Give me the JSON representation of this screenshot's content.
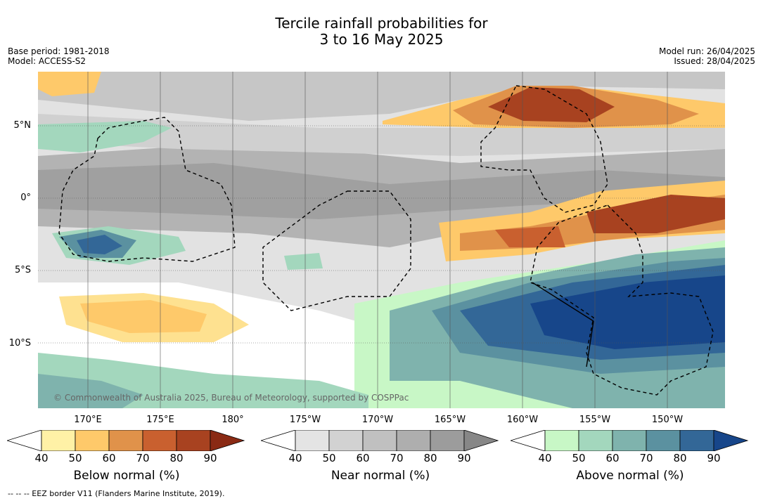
{
  "title_line1": "Tercile rainfall probabilities for",
  "title_line2": "3 to 16 May 2025",
  "base_period": "Base period: 1981-2018",
  "model": "Model: ACCESS-S2",
  "model_run": "Model run: 26/04/2025",
  "issued": "Issued: 28/04/2025",
  "lat_labels": [
    "5°N",
    "0°",
    "5°S",
    "10°S"
  ],
  "lon_labels": [
    "170°E",
    "175°E",
    "180°",
    "175°W",
    "170°W",
    "165°W",
    "160°W",
    "155°W",
    "150°W"
  ],
  "copyright": "© Commonwealth of Australia 2025, Bureau of Meteorology, supported by COSPPac",
  "footer": "-- -- -- EEZ border V11 (Flanders Marine Institute, 2019).",
  "colorbars": [
    {
      "label": "Below normal (%)",
      "ticks": [
        "40",
        "50",
        "60",
        "70",
        "80",
        "90"
      ],
      "colors": [
        "#fff1a6",
        "#fec96a",
        "#e0924a",
        "#c9602f",
        "#a84220",
        "#8a2a14"
      ]
    },
    {
      "label": "Near normal (%)",
      "ticks": [
        "40",
        "50",
        "60",
        "70",
        "80",
        "90"
      ],
      "colors": [
        "#e4e4e4",
        "#d2d2d2",
        "#c0c0c0",
        "#aeaeae",
        "#9c9c9c",
        "#878787"
      ]
    },
    {
      "label": "Above normal (%)",
      "ticks": [
        "40",
        "50",
        "60",
        "70",
        "80",
        "90"
      ],
      "colors": [
        "#c8f7c6",
        "#a3d7bd",
        "#7fb3ad",
        "#5b91a0",
        "#336797",
        "#17468a"
      ]
    }
  ]
}
